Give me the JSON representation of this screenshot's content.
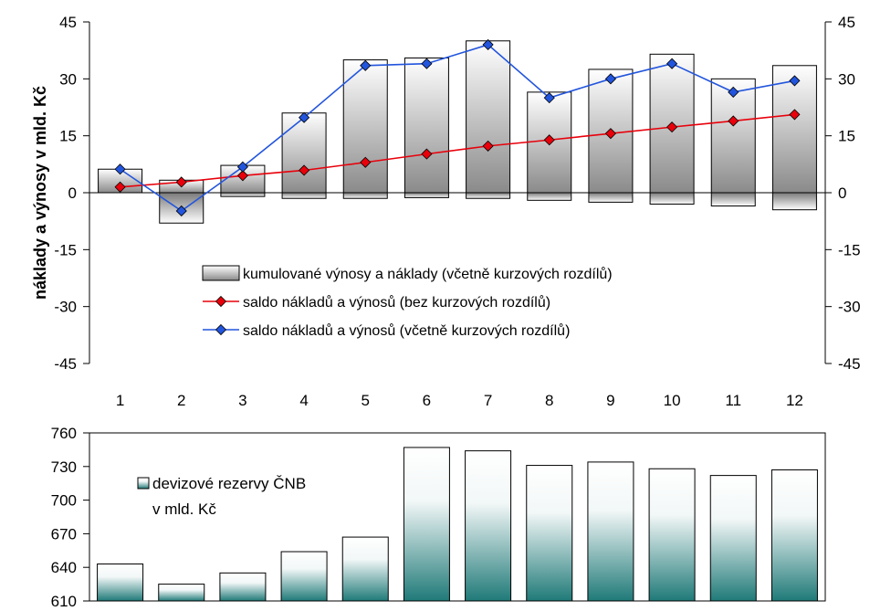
{
  "chart_data": [
    {
      "type": "bar+line",
      "ylabel": "náklady a výnosy v mld. Kč",
      "ylim": [
        -45,
        45
      ],
      "yticks": [
        "45",
        "30",
        "15",
        "0",
        "-15",
        "-30",
        "-45"
      ],
      "y2ticks": [
        "45",
        "30",
        "15",
        "0",
        "-15",
        "-30",
        "-45"
      ],
      "categories": [
        "1",
        "2",
        "3",
        "4",
        "5",
        "6",
        "7",
        "8",
        "9",
        "10",
        "11",
        "12"
      ],
      "bars_positive": [
        6.2,
        3.3,
        7.2,
        21.0,
        35.0,
        35.5,
        40.0,
        26.5,
        32.5,
        36.5,
        30.0,
        33.5
      ],
      "bars_negative": [
        0,
        -8.0,
        -1.0,
        -1.5,
        -1.5,
        -1.3,
        -1.5,
        -2.0,
        -2.5,
        -3.0,
        -3.5,
        -4.5
      ],
      "series": [
        {
          "name": "kumulované výnosy a náklady (včetně kurzových rozdílů)",
          "kind": "bar"
        },
        {
          "name": "saldo nákladů a výnosů (bez kurzových rozdílů)",
          "kind": "line",
          "color": "#e8000b",
          "values": [
            1.5,
            2.8,
            4.5,
            5.9,
            8.0,
            10.2,
            12.3,
            13.9,
            15.6,
            17.3,
            18.9,
            20.6
          ]
        },
        {
          "name": "saldo nákladů a výnosů (včetně kurzových rozdílů)",
          "kind": "line",
          "color": "#2255dd",
          "values": [
            6.2,
            -4.8,
            6.8,
            19.8,
            33.5,
            34.0,
            39.0,
            25.0,
            30.0,
            34.0,
            26.5,
            29.5
          ]
        }
      ],
      "legend": "center-bottom"
    },
    {
      "type": "bar",
      "ylim": [
        610,
        760
      ],
      "yticks": [
        "760",
        "730",
        "700",
        "670",
        "640",
        "610"
      ],
      "legend_line1": "devizové rezervy ČNB",
      "legend_line2": "v mld. Kč",
      "values": [
        643,
        625,
        635,
        654,
        667,
        747,
        744,
        731,
        734,
        728,
        722,
        727
      ]
    }
  ]
}
